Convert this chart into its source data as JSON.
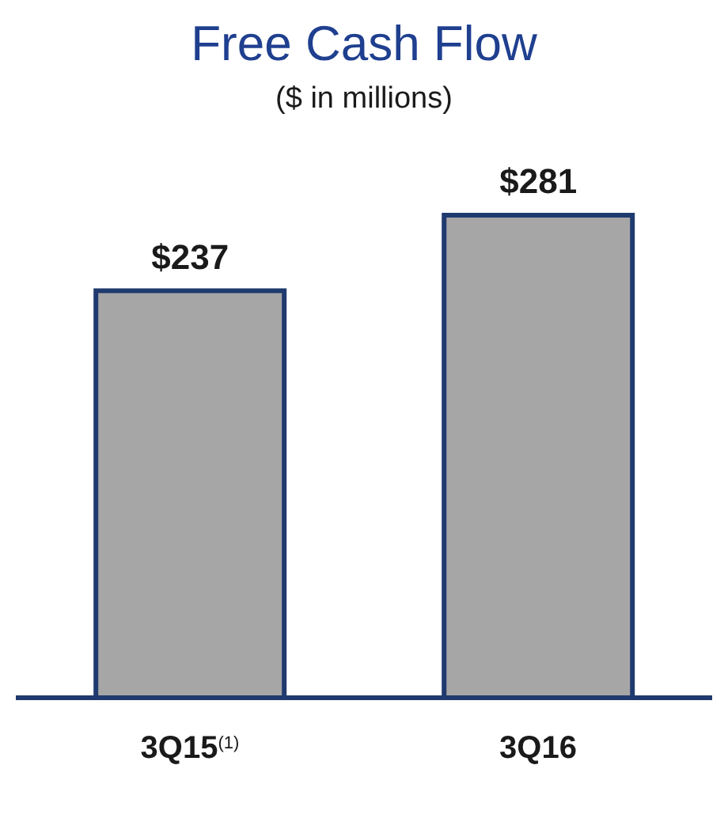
{
  "chart_data": {
    "type": "bar",
    "title": "Free Cash Flow",
    "subtitle": "($ in millions)",
    "categories": [
      "3Q15$^{(1)}$",
      "3Q16"
    ],
    "series": [
      {
        "color": "#a6a6a6",
        "values": [
          237,
          281
        ],
        "value_labels": [
          "$237",
          "$281"
        ]
      }
    ]
  }
}
